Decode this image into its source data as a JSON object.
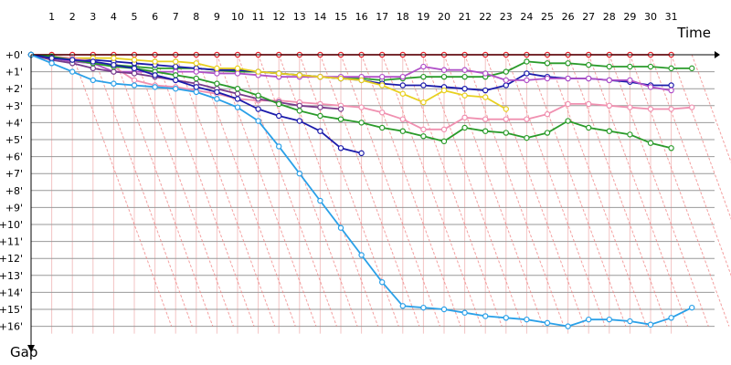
{
  "chart_data": {
    "type": "line",
    "title": "",
    "xlabel": "Time",
    "ylabel": "Gap",
    "x_ticks": [
      "1",
      "2",
      "3",
      "4",
      "5",
      "6",
      "7",
      "8",
      "9",
      "10",
      "11",
      "12",
      "13",
      "14",
      "15",
      "16",
      "17",
      "18",
      "19",
      "20",
      "21",
      "22",
      "23",
      "24",
      "25",
      "26",
      "27",
      "28",
      "29",
      "30",
      "31"
    ],
    "y_ticks": [
      "+0'",
      "+1'",
      "+2'",
      "+3'",
      "+4'",
      "+5'",
      "+6'",
      "+7'",
      "+8'",
      "+9'",
      "+10'",
      "+11'",
      "+12'",
      "+13'",
      "+14'",
      "+15'",
      "+16'"
    ],
    "xlim": [
      0,
      32
    ],
    "ylim": [
      0,
      16
    ],
    "y_inverted": true,
    "grid": true,
    "colors": {
      "grid_horizontal": "#999999",
      "grid_vertical": "#f3c3c3",
      "lapping_lines": "#f08080",
      "axis": "#000000"
    },
    "series": [
      {
        "color": "#e8202a",
        "points": [
          [
            0,
            0
          ],
          [
            1,
            0
          ],
          [
            2,
            0
          ],
          [
            3,
            0
          ],
          [
            4,
            0
          ],
          [
            5,
            0
          ],
          [
            6,
            0
          ],
          [
            7,
            0
          ],
          [
            8,
            0
          ],
          [
            9,
            0
          ],
          [
            10,
            0
          ],
          [
            11,
            0
          ],
          [
            12,
            0
          ],
          [
            13,
            0
          ],
          [
            14,
            0
          ],
          [
            15,
            0
          ],
          [
            16,
            0
          ],
          [
            17,
            0
          ],
          [
            18,
            0
          ],
          [
            19,
            0
          ],
          [
            20,
            0
          ],
          [
            21,
            0
          ],
          [
            22,
            0
          ],
          [
            23,
            0
          ],
          [
            24,
            0
          ],
          [
            25,
            0
          ],
          [
            26,
            0
          ],
          [
            27,
            0
          ],
          [
            28,
            0
          ],
          [
            29,
            0
          ],
          [
            30,
            0
          ],
          [
            31,
            0
          ]
        ]
      },
      {
        "color": "#2a9b2a",
        "points": [
          [
            0,
            0
          ],
          [
            1,
            0.2
          ],
          [
            2,
            0.4
          ],
          [
            3,
            0.5
          ],
          [
            4,
            0.6
          ],
          [
            5,
            0.7
          ],
          [
            6,
            0.8
          ],
          [
            7,
            0.8
          ],
          [
            8,
            0.8
          ],
          [
            9,
            0.9
          ],
          [
            10,
            1.0
          ],
          [
            11,
            1.0
          ],
          [
            12,
            1.1
          ],
          [
            13,
            1.2
          ],
          [
            14,
            1.3
          ],
          [
            15,
            1.4
          ],
          [
            16,
            1.4
          ],
          [
            17,
            1.5
          ],
          [
            18,
            1.4
          ],
          [
            19,
            1.3
          ],
          [
            20,
            1.3
          ],
          [
            21,
            1.3
          ],
          [
            22,
            1.3
          ],
          [
            23,
            1.0
          ],
          [
            24,
            0.4
          ],
          [
            25,
            0.5
          ],
          [
            26,
            0.5
          ],
          [
            27,
            0.6
          ],
          [
            28,
            0.7
          ],
          [
            29,
            0.7
          ],
          [
            30,
            0.7
          ],
          [
            31,
            0.8
          ],
          [
            32,
            0.8
          ]
        ]
      },
      {
        "color": "#1b1bab",
        "points": [
          [
            0,
            0
          ],
          [
            1,
            0.2
          ],
          [
            2,
            0.3
          ],
          [
            3,
            0.3
          ],
          [
            4,
            0.4
          ],
          [
            5,
            0.5
          ],
          [
            6,
            0.6
          ],
          [
            7,
            0.7
          ],
          [
            8,
            0.8
          ],
          [
            9,
            0.9
          ],
          [
            10,
            0.9
          ],
          [
            11,
            1.0
          ],
          [
            12,
            1.1
          ],
          [
            13,
            1.2
          ],
          [
            14,
            1.3
          ],
          [
            15,
            1.4
          ],
          [
            16,
            1.5
          ],
          [
            17,
            1.7
          ],
          [
            18,
            1.8
          ],
          [
            19,
            1.8
          ],
          [
            20,
            1.9
          ],
          [
            21,
            2.0
          ],
          [
            22,
            2.1
          ],
          [
            23,
            1.8
          ],
          [
            24,
            1.1
          ],
          [
            25,
            1.3
          ],
          [
            26,
            1.4
          ],
          [
            27,
            1.4
          ],
          [
            28,
            1.5
          ],
          [
            29,
            1.6
          ],
          [
            30,
            1.8
          ],
          [
            31,
            1.8
          ]
        ]
      },
      {
        "color": "#b050c8",
        "points": [
          [
            0,
            0
          ],
          [
            1,
            0.2
          ],
          [
            2,
            0.4
          ],
          [
            3,
            0.5
          ],
          [
            4,
            1.0
          ],
          [
            5,
            1.0
          ],
          [
            6,
            1.0
          ],
          [
            7,
            1.0
          ],
          [
            8,
            1.0
          ],
          [
            9,
            1.1
          ],
          [
            10,
            1.1
          ],
          [
            11,
            1.2
          ],
          [
            12,
            1.3
          ],
          [
            13,
            1.3
          ],
          [
            14,
            1.3
          ],
          [
            15,
            1.3
          ],
          [
            16,
            1.3
          ],
          [
            17,
            1.3
          ],
          [
            18,
            1.3
          ],
          [
            19,
            0.7
          ],
          [
            20,
            0.9
          ],
          [
            21,
            0.9
          ],
          [
            22,
            1.1
          ],
          [
            23,
            1.5
          ],
          [
            24,
            1.5
          ],
          [
            25,
            1.4
          ],
          [
            26,
            1.4
          ],
          [
            27,
            1.4
          ],
          [
            28,
            1.5
          ],
          [
            29,
            1.5
          ],
          [
            30,
            1.9
          ],
          [
            31,
            2.1
          ]
        ]
      },
      {
        "color": "#e8d020",
        "points": [
          [
            0,
            0
          ],
          [
            1,
            0.1
          ],
          [
            2,
            0.2
          ],
          [
            3,
            0.2
          ],
          [
            4,
            0.2
          ],
          [
            5,
            0.3
          ],
          [
            6,
            0.4
          ],
          [
            7,
            0.4
          ],
          [
            8,
            0.5
          ],
          [
            9,
            0.8
          ],
          [
            10,
            0.8
          ],
          [
            11,
            1.0
          ],
          [
            12,
            1.1
          ],
          [
            13,
            1.2
          ],
          [
            14,
            1.3
          ],
          [
            15,
            1.4
          ],
          [
            16,
            1.5
          ],
          [
            17,
            1.8
          ],
          [
            18,
            2.3
          ],
          [
            19,
            2.8
          ],
          [
            20,
            2.1
          ],
          [
            21,
            2.4
          ],
          [
            22,
            2.5
          ],
          [
            23,
            3.2
          ]
        ]
      },
      {
        "color": "#f090b0",
        "points": [
          [
            0,
            0
          ],
          [
            1,
            0.1
          ],
          [
            2,
            0.2
          ],
          [
            3,
            0.4
          ],
          [
            4,
            0.7
          ],
          [
            5,
            1.5
          ],
          [
            6,
            1.8
          ],
          [
            7,
            1.9
          ],
          [
            8,
            2.1
          ],
          [
            9,
            2.3
          ],
          [
            10,
            2.6
          ],
          [
            11,
            2.7
          ],
          [
            12,
            2.7
          ],
          [
            13,
            2.8
          ],
          [
            14,
            2.9
          ],
          [
            15,
            3.0
          ],
          [
            16,
            3.1
          ],
          [
            17,
            3.4
          ],
          [
            18,
            3.8
          ],
          [
            19,
            4.4
          ],
          [
            20,
            4.4
          ],
          [
            21,
            3.7
          ],
          [
            22,
            3.8
          ],
          [
            23,
            3.8
          ],
          [
            24,
            3.8
          ],
          [
            25,
            3.5
          ],
          [
            26,
            2.9
          ],
          [
            27,
            2.9
          ],
          [
            28,
            3.0
          ],
          [
            29,
            3.1
          ],
          [
            30,
            3.2
          ],
          [
            31,
            3.2
          ],
          [
            32,
            3.1
          ]
        ]
      },
      {
        "color": "#783c8c",
        "points": [
          [
            0,
            0
          ],
          [
            1,
            0.3
          ],
          [
            2,
            0.5
          ],
          [
            3,
            0.8
          ],
          [
            4,
            1.0
          ],
          [
            5,
            1.1
          ],
          [
            6,
            1.3
          ],
          [
            7,
            1.5
          ],
          [
            8,
            1.7
          ],
          [
            9,
            2.0
          ],
          [
            10,
            2.3
          ],
          [
            11,
            2.6
          ],
          [
            12,
            2.8
          ],
          [
            13,
            3.0
          ],
          [
            14,
            3.1
          ],
          [
            15,
            3.2
          ]
        ]
      },
      {
        "color": "#2a9b2a",
        "points": [
          [
            0,
            0
          ],
          [
            1,
            0.1
          ],
          [
            2,
            0.3
          ],
          [
            3,
            0.5
          ],
          [
            4,
            0.7
          ],
          [
            5,
            0.8
          ],
          [
            6,
            1.0
          ],
          [
            7,
            1.2
          ],
          [
            8,
            1.4
          ],
          [
            9,
            1.7
          ],
          [
            10,
            2.0
          ],
          [
            11,
            2.4
          ],
          [
            12,
            2.9
          ],
          [
            13,
            3.3
          ],
          [
            14,
            3.6
          ],
          [
            15,
            3.8
          ],
          [
            16,
            4.0
          ],
          [
            17,
            4.3
          ],
          [
            18,
            4.5
          ],
          [
            19,
            4.8
          ],
          [
            20,
            5.1
          ],
          [
            21,
            4.3
          ],
          [
            22,
            4.5
          ],
          [
            23,
            4.6
          ],
          [
            24,
            4.9
          ],
          [
            25,
            4.6
          ],
          [
            26,
            3.9
          ],
          [
            27,
            4.3
          ],
          [
            28,
            4.5
          ],
          [
            29,
            4.7
          ],
          [
            30,
            5.2
          ],
          [
            31,
            5.5
          ]
        ]
      },
      {
        "color": "#1b1bab",
        "points": [
          [
            0,
            0
          ],
          [
            1,
            0.2
          ],
          [
            2,
            0.3
          ],
          [
            3,
            0.4
          ],
          [
            4,
            0.6
          ],
          [
            5,
            0.8
          ],
          [
            6,
            1.2
          ],
          [
            7,
            1.5
          ],
          [
            8,
            1.9
          ],
          [
            9,
            2.2
          ],
          [
            10,
            2.6
          ],
          [
            11,
            3.2
          ],
          [
            12,
            3.6
          ],
          [
            13,
            3.9
          ],
          [
            14,
            4.5
          ],
          [
            15,
            5.5
          ],
          [
            16,
            5.8
          ]
        ]
      },
      {
        "color": "#2aa0e8",
        "points": [
          [
            0,
            0
          ],
          [
            1,
            0.5
          ],
          [
            2,
            1.0
          ],
          [
            3,
            1.5
          ],
          [
            4,
            1.7
          ],
          [
            5,
            1.8
          ],
          [
            6,
            1.9
          ],
          [
            7,
            2.0
          ],
          [
            8,
            2.2
          ],
          [
            9,
            2.6
          ],
          [
            10,
            3.1
          ],
          [
            11,
            3.9
          ],
          [
            12,
            5.4
          ],
          [
            13,
            7.0
          ],
          [
            14,
            8.6
          ],
          [
            15,
            10.2
          ],
          [
            16,
            11.8
          ],
          [
            17,
            13.4
          ],
          [
            18,
            14.8
          ],
          [
            19,
            14.9
          ],
          [
            20,
            15.0
          ],
          [
            21,
            15.2
          ],
          [
            22,
            15.4
          ],
          [
            23,
            15.5
          ],
          [
            24,
            15.6
          ],
          [
            25,
            15.8
          ],
          [
            26,
            16.0
          ],
          [
            27,
            15.6
          ],
          [
            28,
            15.6
          ],
          [
            29,
            15.7
          ],
          [
            30,
            15.9
          ],
          [
            31,
            15.5
          ],
          [
            32,
            14.9
          ]
        ]
      }
    ]
  }
}
